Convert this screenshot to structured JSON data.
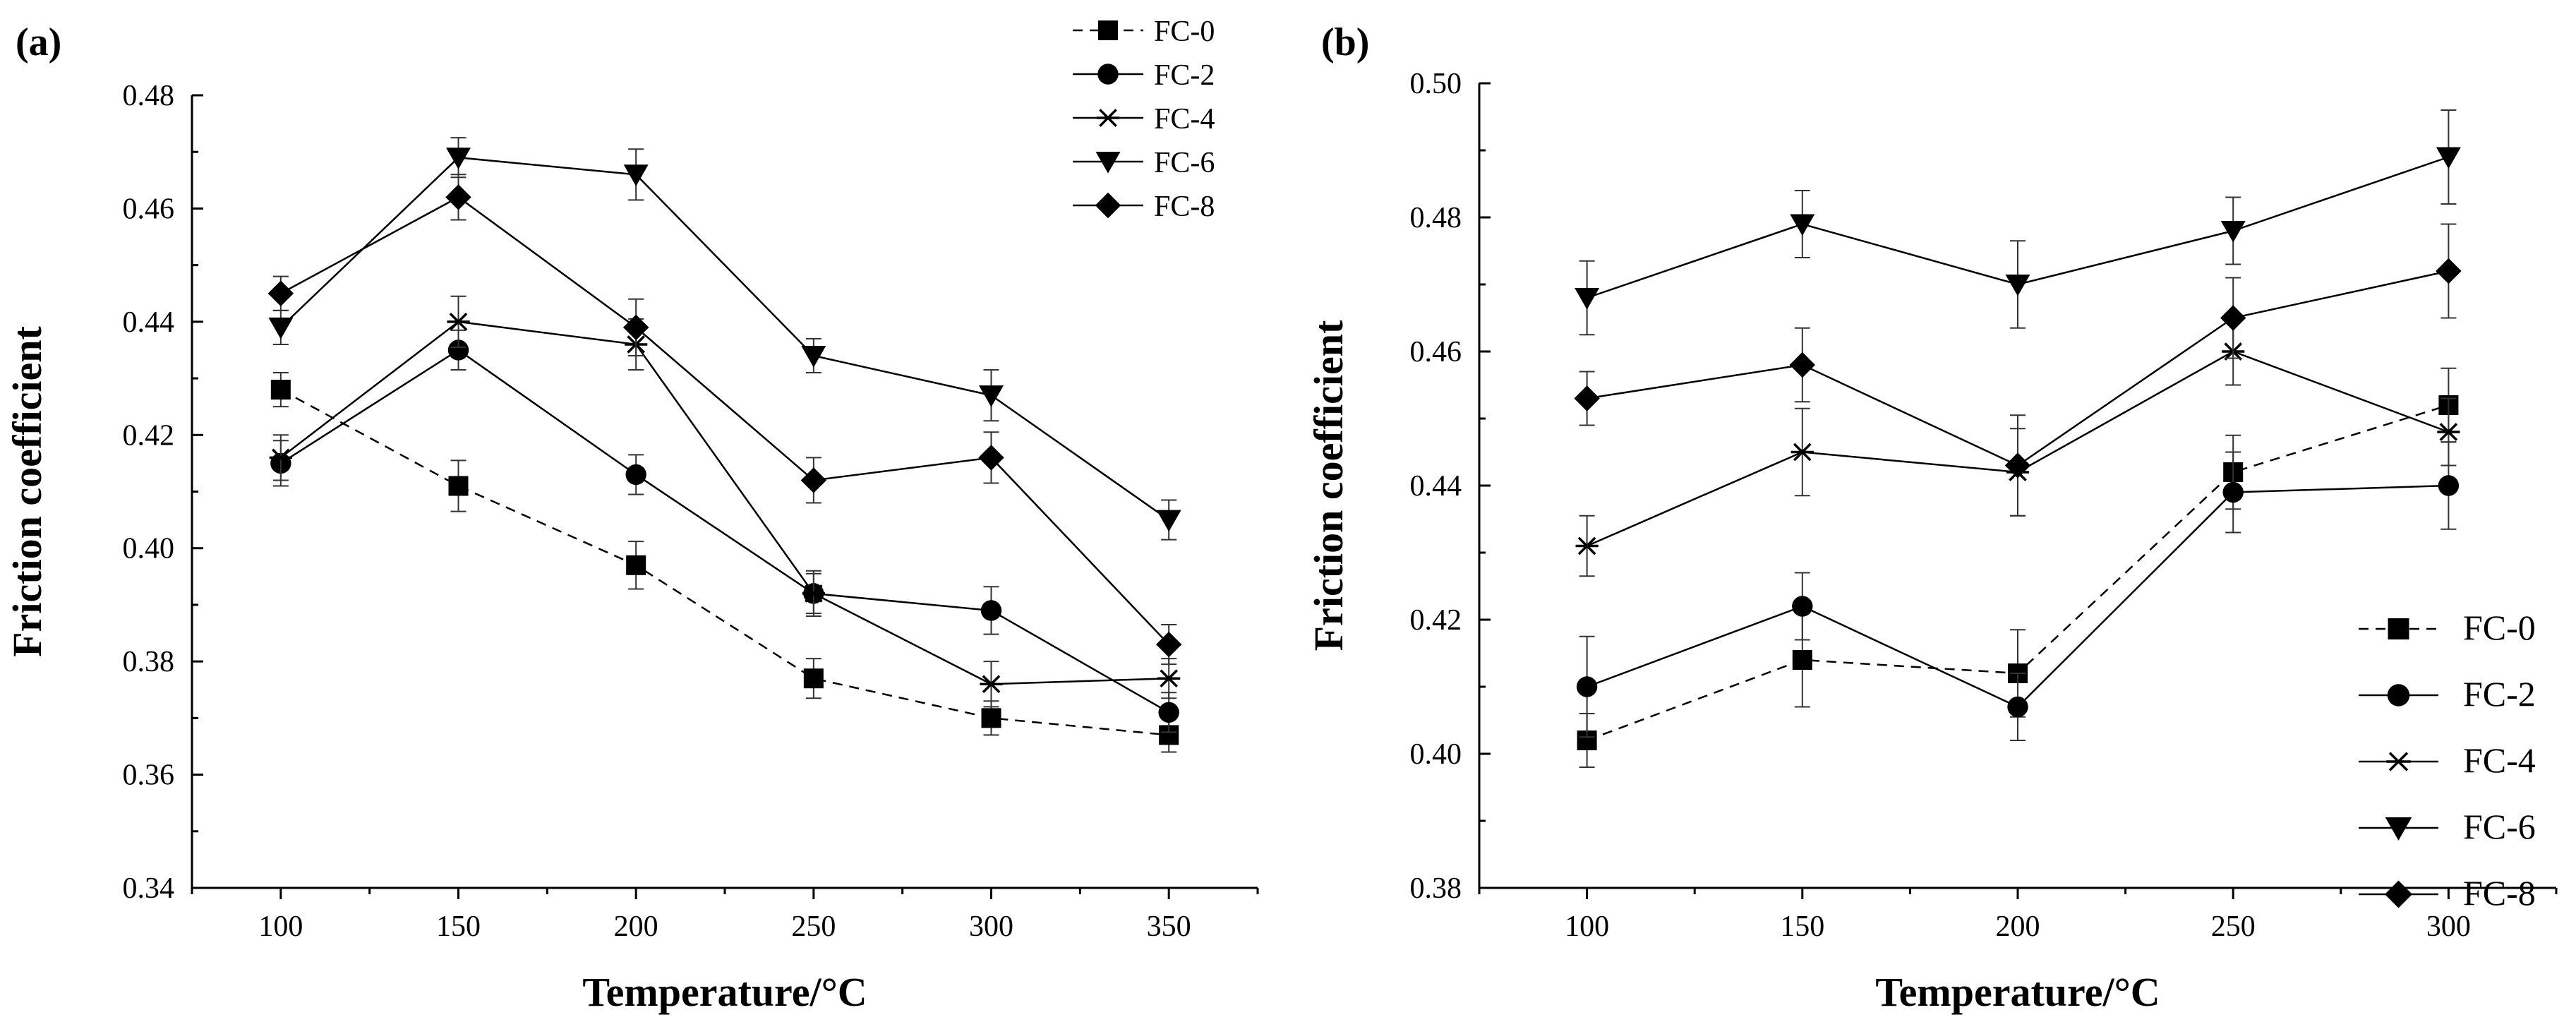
{
  "chart_data": [
    {
      "panel_label": "(a)",
      "type": "line",
      "xlabel": "Temperature/°C",
      "ylabel": "Friction coefficient",
      "x": [
        100,
        150,
        200,
        250,
        300,
        350
      ],
      "xlim": [
        75,
        375
      ],
      "ylim": [
        0.34,
        0.48
      ],
      "xticks": [
        100,
        150,
        200,
        250,
        300,
        350
      ],
      "xtick_labels": [
        "100",
        "150",
        "200",
        "250",
        "300",
        "350"
      ],
      "yticks": [
        0.34,
        0.36,
        0.38,
        0.4,
        0.42,
        0.44,
        0.46,
        0.48
      ],
      "ytick_labels": [
        "0.34",
        "0.36",
        "0.38",
        "0.40",
        "0.42",
        "0.44",
        "0.46",
        "0.48"
      ],
      "legend_position": "top-right",
      "series": [
        {
          "name": "FC-0",
          "marker": "square",
          "line": "dashed",
          "values": [
            0.428,
            0.411,
            0.397,
            0.377,
            0.37,
            0.367
          ],
          "errors": [
            0.003,
            0.0045,
            0.0042,
            0.0035,
            0.003,
            0.003
          ]
        },
        {
          "name": "FC-2",
          "marker": "circle",
          "line": "solid",
          "values": [
            0.415,
            0.435,
            0.413,
            0.392,
            0.389,
            0.371
          ],
          "errors": [
            0.004,
            0.0035,
            0.0035,
            0.004,
            0.0042,
            0.0035
          ]
        },
        {
          "name": "FC-4",
          "marker": "star",
          "line": "solid",
          "values": [
            0.416,
            0.44,
            0.436,
            0.392,
            0.376,
            0.377
          ],
          "errors": [
            0.004,
            0.0045,
            0.0045,
            0.0035,
            0.004,
            0.0035
          ]
        },
        {
          "name": "FC-6",
          "marker": "triangle-down",
          "line": "solid",
          "values": [
            0.439,
            0.469,
            0.466,
            0.434,
            0.427,
            0.405
          ],
          "errors": [
            0.003,
            0.0035,
            0.0045,
            0.003,
            0.0045,
            0.0035
          ]
        },
        {
          "name": "FC-8",
          "marker": "diamond",
          "line": "solid",
          "values": [
            0.445,
            0.462,
            0.439,
            0.412,
            0.416,
            0.383
          ],
          "errors": [
            0.003,
            0.004,
            0.005,
            0.004,
            0.0045,
            0.0035
          ]
        }
      ]
    },
    {
      "panel_label": "(b)",
      "type": "line",
      "xlabel": "Temperature/°C",
      "ylabel": "Friction coefficient",
      "x": [
        100,
        150,
        200,
        250,
        300
      ],
      "xlim": [
        75,
        325
      ],
      "ylim": [
        0.38,
        0.5
      ],
      "xticks": [
        100,
        150,
        200,
        250,
        300
      ],
      "xtick_labels": [
        "100",
        "150",
        "200",
        "250",
        "300"
      ],
      "yticks": [
        0.38,
        0.4,
        0.42,
        0.44,
        0.46,
        0.48,
        0.5
      ],
      "ytick_labels": [
        "0.38",
        "0.40",
        "0.42",
        "0.44",
        "0.46",
        "0.48",
        "0.50"
      ],
      "legend_position": "bottom-right",
      "series": [
        {
          "name": "FC-0",
          "marker": "square",
          "line": "dashed",
          "values": [
            0.402,
            0.414,
            0.412,
            0.442,
            0.452
          ],
          "errors": [
            0.004,
            0.007,
            0.0065,
            0.0055,
            0.0055
          ]
        },
        {
          "name": "FC-2",
          "marker": "circle",
          "line": "solid",
          "values": [
            0.41,
            0.422,
            0.407,
            0.439,
            0.44
          ],
          "errors": [
            0.0075,
            0.005,
            0.005,
            0.006,
            0.0065
          ]
        },
        {
          "name": "FC-4",
          "marker": "star",
          "line": "solid",
          "values": [
            0.431,
            0.445,
            0.442,
            0.46,
            0.448
          ],
          "errors": [
            0.0045,
            0.0065,
            0.0065,
            0.005,
            0.005
          ]
        },
        {
          "name": "FC-6",
          "marker": "triangle-down",
          "line": "solid",
          "values": [
            0.468,
            0.479,
            0.47,
            0.478,
            0.489
          ],
          "errors": [
            0.0055,
            0.005,
            0.0065,
            0.005,
            0.007
          ]
        },
        {
          "name": "FC-8",
          "marker": "diamond",
          "line": "solid",
          "values": [
            0.453,
            0.458,
            0.443,
            0.465,
            0.472
          ],
          "errors": [
            0.004,
            0.0055,
            0.0075,
            0.006,
            0.007
          ]
        }
      ]
    }
  ]
}
